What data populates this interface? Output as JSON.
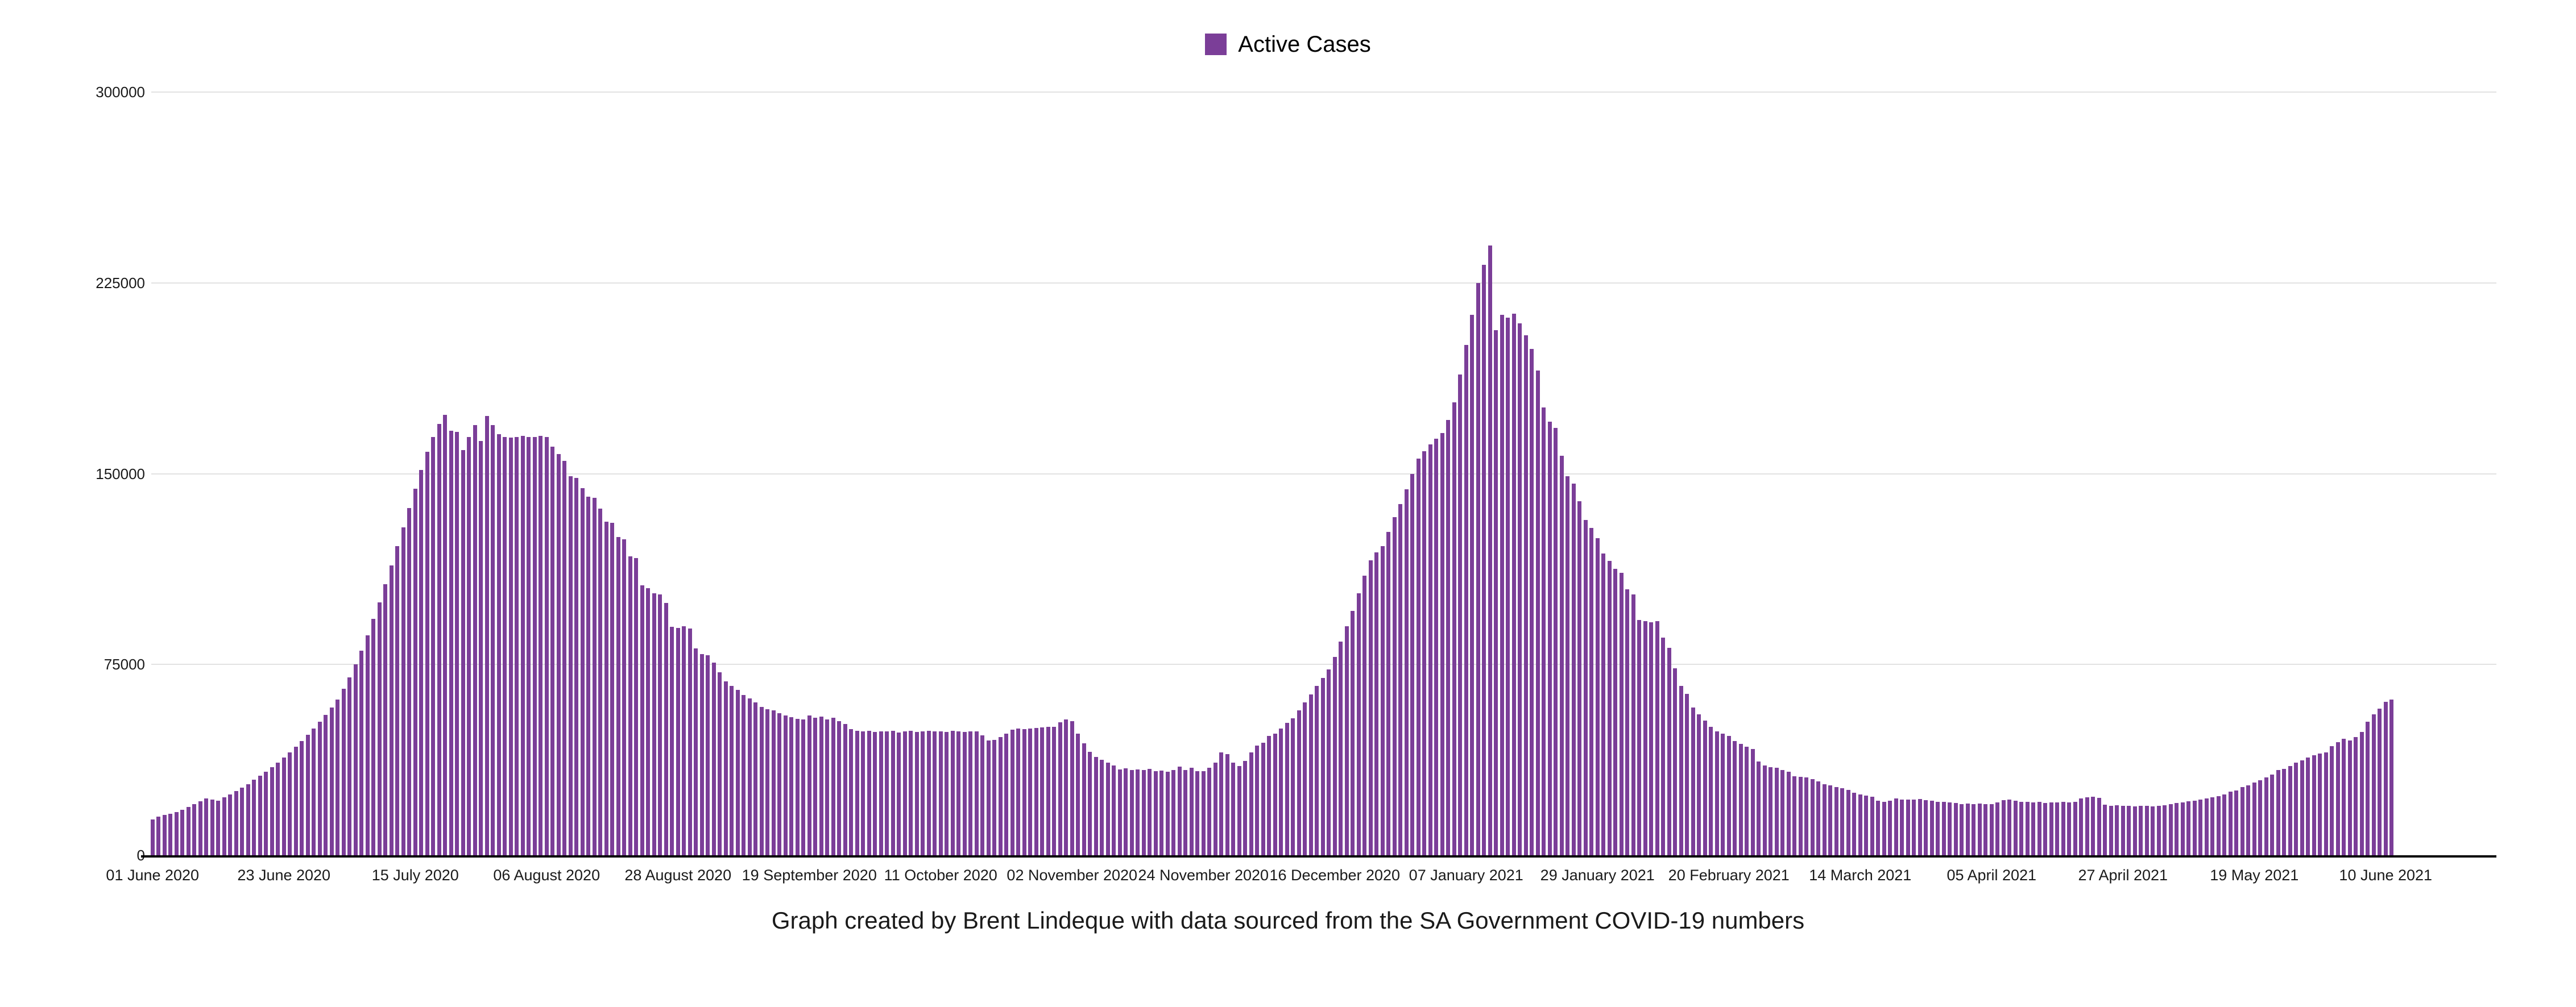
{
  "legend": {
    "label": "Active Cases",
    "swatch_color": "#7B3E98"
  },
  "caption": {
    "text": "Graph created by Brent Lindeque with data sourced from the SA Government COVID-19 numbers"
  },
  "chart_data": {
    "type": "bar",
    "title": "",
    "series_name": "Active Cases",
    "bar_color": "#7B3E98",
    "background_color": "#ffffff",
    "gridline_color": "#e2e2e2",
    "axis_line_color": "#000000",
    "grid": "horizontal",
    "legend_position": "top-center",
    "ylim": [
      0,
      300000
    ],
    "y_ticks": [
      0,
      75000,
      150000,
      225000,
      300000
    ],
    "y_tick_labels": [
      "0",
      "75000",
      "150000",
      "225000",
      "300000"
    ],
    "x_unit": "day",
    "x_start_label": "01 June 2020",
    "x_end_label": "10 June 2021",
    "x_tick_interval_days": 22,
    "x_tick_labels": [
      "01 June 2020",
      "23 June 2020",
      "15 July 2020",
      "06 August 2020",
      "28 August 2020",
      "19 September 2020",
      "11 October 2020",
      "02 November 2020",
      "24 November 2020",
      "16 December 2020",
      "07 January 2021",
      "29 January 2021",
      "20 February 2021",
      "14 March 2021",
      "05 April 2021",
      "27 April 2021",
      "19 May 2021",
      "10 June 2021"
    ],
    "values": [
      14000,
      15200,
      15800,
      16400,
      16900,
      17800,
      19000,
      20100,
      21300,
      22400,
      21900,
      21500,
      22800,
      24000,
      25200,
      26500,
      28000,
      29600,
      31200,
      32900,
      34700,
      36500,
      38400,
      40400,
      42600,
      44900,
      47300,
      49800,
      52400,
      55200,
      58100,
      61100,
      65500,
      70000,
      75000,
      80500,
      86500,
      93000,
      99500,
      106500,
      114000,
      121500,
      129000,
      136500,
      144000,
      151500,
      158500,
      164500,
      169500,
      173200,
      166800,
      166500,
      159200,
      164500,
      169200,
      162800,
      172600,
      169000,
      165600,
      164500,
      164100,
      164500,
      164800,
      164500,
      164300,
      164800,
      164300,
      160500,
      157800,
      155100,
      149100,
      148400,
      144300,
      141000,
      140600,
      136300,
      131200,
      130600,
      125100,
      124200,
      117400,
      116800,
      106000,
      105100,
      102900,
      102600,
      99200,
      89700,
      89400,
      90000,
      89200,
      81400,
      79100,
      78700,
      75700,
      71900,
      68300,
      66500,
      64900,
      63100,
      61600,
      60000,
      58200,
      57400,
      56900,
      55900,
      54900,
      54200,
      53500,
      53400,
      54900,
      54000,
      54600,
      53400,
      54000,
      52800,
      51600,
      49500,
      49000,
      48700,
      48900,
      48500,
      48800,
      48600,
      48900,
      48300,
      48600,
      48900,
      48500,
      48700,
      49000,
      48600,
      48800,
      48500,
      48900,
      48700,
      48500,
      48800,
      48600,
      47200,
      45200,
      45400,
      46400,
      47800,
      49300,
      49800,
      49500,
      49800,
      50000,
      50200,
      50400,
      50500,
      52200,
      53300,
      52800,
      47900,
      44000,
      40600,
      38600,
      37500,
      36300,
      35200,
      33700,
      34100,
      33500,
      33800,
      33500,
      34000,
      33000,
      33300,
      32900,
      33600,
      34800,
      33600,
      34500,
      33100,
      33000,
      34500,
      36500,
      40400,
      39800,
      36300,
      35000,
      37000,
      40500,
      43100,
      44200,
      46800,
      47900,
      49800,
      52000,
      53900,
      56900,
      60000,
      63200,
      66500,
      69600,
      73000,
      78000,
      84000,
      90000,
      96000,
      103000,
      110000,
      116000,
      119000,
      121500,
      127000,
      132800,
      138000,
      143900,
      150000,
      155900,
      158800,
      161600,
      163800,
      166000,
      171000,
      178000,
      189000,
      200500,
      212500,
      225000,
      232000,
      239600,
      206500,
      212400,
      211300,
      212800,
      209000,
      204500,
      199000,
      190500,
      176100,
      170500,
      168000,
      157000,
      148900,
      146000,
      139200,
      131800,
      128700,
      124700,
      118700,
      115600,
      112600,
      111000,
      104500,
      102500,
      92500,
      92000,
      91500,
      92000,
      85500,
      81500,
      73500,
      66500,
      63500,
      58000,
      55500,
      53000,
      50500,
      48800,
      47700,
      46800,
      44900,
      43700,
      42700,
      41700,
      36900,
      35200,
      34700,
      34300,
      33400,
      32900,
      31000,
      30900,
      30500,
      29900,
      29000,
      28000,
      27400,
      26900,
      26400,
      25800,
      24500,
      24000,
      23500,
      23100,
      21500,
      21000,
      21500,
      22300,
      22000,
      21800,
      22000,
      22100,
      21700,
      21500,
      21100,
      20900,
      20700,
      20500,
      20200,
      20300,
      20100,
      20400,
      20000,
      20100,
      20800,
      21600,
      21900,
      21500,
      21100,
      20900,
      20700,
      20900,
      20500,
      20700,
      20800,
      21000,
      20700,
      20900,
      22300,
      22700,
      23100,
      22500,
      19800,
      19500,
      19700,
      19500,
      19400,
      19200,
      19400,
      19500,
      19200,
      19400,
      19700,
      20100,
      20500,
      20800,
      21200,
      21500,
      21800,
      22300,
      22800,
      23300,
      23800,
      25000,
      25400,
      26800,
      27400,
      28700,
      29500,
      30500,
      31700,
      33600,
      34000,
      35100,
      36500,
      37400,
      38500,
      39300,
      40000,
      40400,
      42800,
      44500,
      45800,
      45200,
      46400,
      48400,
      52400,
      55400,
      57700,
      60300,
      61300
    ]
  }
}
